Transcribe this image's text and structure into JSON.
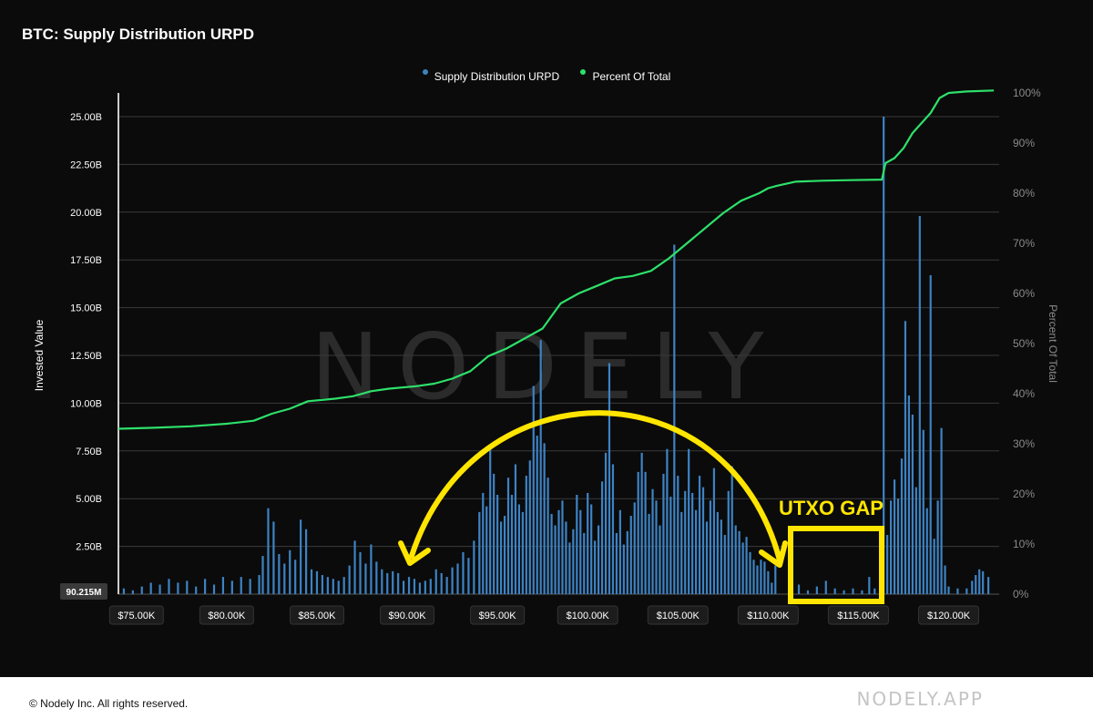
{
  "header": {
    "title": "BTC: Supply Distribution URPD"
  },
  "footer": {
    "copyright": "© Nodely Inc. All rights reserved.",
    "brand": "NODELY.APP"
  },
  "watermark": "NODELY",
  "colors": {
    "background": "#0b0b0b",
    "bars": "#3d83c4",
    "line": "#2ee06a",
    "annotation": "#ffe500",
    "grid": "#3a3a3a"
  },
  "annotation": {
    "gap_label": "UTXO GAP"
  },
  "chart_data": {
    "type": "bar",
    "title": "BTC: Supply Distribution URPD",
    "ylabel": "Invested Value",
    "y2label": "Percent Of Total",
    "legend": [
      "Supply Distribution URPD",
      "Percent Of Total"
    ],
    "legend_position": "top-center",
    "grid": true,
    "xlim": [
      74000,
      122800
    ],
    "ylim": [
      0,
      25000000000
    ],
    "y2lim": [
      0,
      100
    ],
    "x_ticks": [
      "$75.00K",
      "$80.00K",
      "$85.00K",
      "$90.00K",
      "$95.00K",
      "$100.00K",
      "$105.00K",
      "$110.00K",
      "$115.00K",
      "$120.00K"
    ],
    "x_tick_values": [
      75000,
      80000,
      85000,
      90000,
      95000,
      100000,
      105000,
      110000,
      115000,
      120000
    ],
    "y_ticks": [
      "25.00B",
      "22.50B",
      "20.00B",
      "17.50B",
      "15.00B",
      "12.50B",
      "10.00B",
      "7.50B",
      "5.00B",
      "2.50B"
    ],
    "y_tick_values": [
      25,
      22.5,
      20,
      17.5,
      15,
      12.5,
      10,
      7.5,
      5,
      2.5
    ],
    "y_min_label": "90.215M",
    "y2_ticks": [
      "100%",
      "90%",
      "80%",
      "70%",
      "60%",
      "50%",
      "40%",
      "30%",
      "20%",
      "10%",
      "0%"
    ],
    "y2_tick_values": [
      100,
      90,
      80,
      70,
      60,
      50,
      40,
      30,
      20,
      10,
      0
    ],
    "series": [
      {
        "name": "Supply Distribution URPD",
        "type": "bar",
        "unit": "B",
        "points": [
          [
            74300,
            0.3
          ],
          [
            74800,
            0.2
          ],
          [
            75300,
            0.4
          ],
          [
            75800,
            0.6
          ],
          [
            76300,
            0.5
          ],
          [
            76800,
            0.8
          ],
          [
            77300,
            0.6
          ],
          [
            77800,
            0.7
          ],
          [
            78300,
            0.4
          ],
          [
            78800,
            0.8
          ],
          [
            79300,
            0.5
          ],
          [
            79800,
            0.9
          ],
          [
            80300,
            0.7
          ],
          [
            80800,
            0.9
          ],
          [
            81300,
            0.8
          ],
          [
            81800,
            1.0
          ],
          [
            82000,
            2.0
          ],
          [
            82300,
            4.5
          ],
          [
            82600,
            3.8
          ],
          [
            82900,
            2.1
          ],
          [
            83200,
            1.6
          ],
          [
            83500,
            2.3
          ],
          [
            83800,
            1.8
          ],
          [
            84100,
            3.9
          ],
          [
            84400,
            3.4
          ],
          [
            84700,
            1.3
          ],
          [
            85000,
            1.2
          ],
          [
            85300,
            1.0
          ],
          [
            85600,
            0.9
          ],
          [
            85900,
            0.8
          ],
          [
            86200,
            0.7
          ],
          [
            86500,
            0.9
          ],
          [
            86800,
            1.5
          ],
          [
            87100,
            2.8
          ],
          [
            87400,
            2.2
          ],
          [
            87700,
            1.6
          ],
          [
            88000,
            2.6
          ],
          [
            88300,
            1.7
          ],
          [
            88600,
            1.3
          ],
          [
            88900,
            1.1
          ],
          [
            89200,
            1.2
          ],
          [
            89500,
            1.1
          ],
          [
            89800,
            0.7
          ],
          [
            90100,
            0.9
          ],
          [
            90400,
            0.8
          ],
          [
            90700,
            0.6
          ],
          [
            91000,
            0.7
          ],
          [
            91300,
            0.8
          ],
          [
            91600,
            1.3
          ],
          [
            91900,
            1.1
          ],
          [
            92200,
            0.9
          ],
          [
            92500,
            1.4
          ],
          [
            92800,
            1.6
          ],
          [
            93100,
            2.2
          ],
          [
            93400,
            1.9
          ],
          [
            93700,
            2.8
          ],
          [
            94000,
            4.3
          ],
          [
            94200,
            5.3
          ],
          [
            94400,
            4.6
          ],
          [
            94600,
            7.7
          ],
          [
            94800,
            6.3
          ],
          [
            95000,
            5.2
          ],
          [
            95200,
            3.8
          ],
          [
            95400,
            4.1
          ],
          [
            95600,
            6.1
          ],
          [
            95800,
            5.2
          ],
          [
            96000,
            6.8
          ],
          [
            96200,
            4.7
          ],
          [
            96400,
            4.3
          ],
          [
            96600,
            6.2
          ],
          [
            96800,
            7.0
          ],
          [
            97000,
            10.9
          ],
          [
            97200,
            8.3
          ],
          [
            97400,
            13.3
          ],
          [
            97600,
            7.9
          ],
          [
            97800,
            6.1
          ],
          [
            98000,
            4.2
          ],
          [
            98200,
            3.6
          ],
          [
            98400,
            4.4
          ],
          [
            98600,
            4.9
          ],
          [
            98800,
            3.8
          ],
          [
            99000,
            2.7
          ],
          [
            99200,
            3.4
          ],
          [
            99400,
            5.2
          ],
          [
            99600,
            4.4
          ],
          [
            99800,
            3.2
          ],
          [
            100000,
            5.3
          ],
          [
            100200,
            4.7
          ],
          [
            100400,
            2.8
          ],
          [
            100600,
            3.6
          ],
          [
            100800,
            5.9
          ],
          [
            101000,
            7.4
          ],
          [
            101200,
            12.1
          ],
          [
            101400,
            6.8
          ],
          [
            101600,
            3.2
          ],
          [
            101800,
            4.4
          ],
          [
            102000,
            2.6
          ],
          [
            102200,
            3.3
          ],
          [
            102400,
            4.1
          ],
          [
            102600,
            4.8
          ],
          [
            102800,
            6.4
          ],
          [
            103000,
            7.4
          ],
          [
            103200,
            6.4
          ],
          [
            103400,
            4.2
          ],
          [
            103600,
            5.5
          ],
          [
            103800,
            4.9
          ],
          [
            104000,
            3.6
          ],
          [
            104200,
            6.3
          ],
          [
            104400,
            7.6
          ],
          [
            104600,
            5.1
          ],
          [
            104800,
            18.3
          ],
          [
            105000,
            6.2
          ],
          [
            105200,
            4.3
          ],
          [
            105400,
            5.4
          ],
          [
            105600,
            7.6
          ],
          [
            105800,
            5.3
          ],
          [
            106000,
            4.4
          ],
          [
            106200,
            6.2
          ],
          [
            106400,
            5.6
          ],
          [
            106600,
            3.8
          ],
          [
            106800,
            4.9
          ],
          [
            107000,
            6.6
          ],
          [
            107200,
            4.3
          ],
          [
            107400,
            3.9
          ],
          [
            107600,
            3.1
          ],
          [
            107800,
            5.4
          ],
          [
            108000,
            6.7
          ],
          [
            108200,
            3.6
          ],
          [
            108400,
            3.3
          ],
          [
            108600,
            2.7
          ],
          [
            108800,
            3.0
          ],
          [
            109000,
            2.2
          ],
          [
            109200,
            1.8
          ],
          [
            109400,
            1.5
          ],
          [
            109600,
            1.8
          ],
          [
            109800,
            1.7
          ],
          [
            110000,
            1.2
          ],
          [
            110200,
            0.6
          ],
          [
            110400,
            1.5
          ],
          [
            111200,
            0.2
          ],
          [
            111700,
            0.5
          ],
          [
            112200,
            0.2
          ],
          [
            112700,
            0.4
          ],
          [
            113200,
            0.7
          ],
          [
            113700,
            0.3
          ],
          [
            114200,
            0.2
          ],
          [
            114700,
            0.3
          ],
          [
            115200,
            0.2
          ],
          [
            115600,
            0.9
          ],
          [
            115900,
            0.3
          ],
          [
            116200,
            1.6
          ],
          [
            116400,
            25.0
          ],
          [
            116600,
            3.1
          ],
          [
            116800,
            4.9
          ],
          [
            117000,
            6.0
          ],
          [
            117200,
            5.0
          ],
          [
            117400,
            7.1
          ],
          [
            117600,
            14.3
          ],
          [
            117800,
            10.4
          ],
          [
            118000,
            9.4
          ],
          [
            118200,
            5.6
          ],
          [
            118400,
            19.8
          ],
          [
            118600,
            8.6
          ],
          [
            118800,
            4.5
          ],
          [
            119000,
            16.7
          ],
          [
            119200,
            2.9
          ],
          [
            119400,
            4.9
          ],
          [
            119600,
            8.7
          ],
          [
            119800,
            1.5
          ],
          [
            120000,
            0.4
          ],
          [
            120500,
            0.3
          ],
          [
            121000,
            0.3
          ],
          [
            121300,
            0.7
          ],
          [
            121500,
            1.0
          ],
          [
            121700,
            1.3
          ],
          [
            121900,
            1.2
          ],
          [
            122200,
            0.9
          ]
        ]
      },
      {
        "name": "Percent Of Total",
        "type": "line",
        "unit": "%",
        "points": [
          [
            74000,
            33.0
          ],
          [
            76000,
            33.2
          ],
          [
            78000,
            33.5
          ],
          [
            80000,
            34.0
          ],
          [
            81500,
            34.6
          ],
          [
            82500,
            36.0
          ],
          [
            83500,
            37.0
          ],
          [
            84500,
            38.5
          ],
          [
            86000,
            39.0
          ],
          [
            87000,
            39.5
          ],
          [
            88000,
            40.5
          ],
          [
            89000,
            41.0
          ],
          [
            90500,
            41.5
          ],
          [
            91500,
            42.0
          ],
          [
            92500,
            43.0
          ],
          [
            93500,
            44.5
          ],
          [
            94500,
            47.5
          ],
          [
            95500,
            49.0
          ],
          [
            96500,
            51.0
          ],
          [
            97500,
            53.0
          ],
          [
            98500,
            58.0
          ],
          [
            99500,
            60.0
          ],
          [
            100500,
            61.5
          ],
          [
            101500,
            63.0
          ],
          [
            102500,
            63.5
          ],
          [
            103500,
            64.5
          ],
          [
            104500,
            67.0
          ],
          [
            105500,
            70.0
          ],
          [
            106500,
            73.0
          ],
          [
            107500,
            76.0
          ],
          [
            108500,
            78.5
          ],
          [
            109500,
            80.0
          ],
          [
            110000,
            81.0
          ],
          [
            110500,
            81.5
          ],
          [
            111500,
            82.3
          ],
          [
            113000,
            82.5
          ],
          [
            114500,
            82.6
          ],
          [
            116300,
            82.7
          ],
          [
            116500,
            86.0
          ],
          [
            117000,
            87.0
          ],
          [
            117500,
            89.0
          ],
          [
            118000,
            92.0
          ],
          [
            118500,
            94.0
          ],
          [
            119000,
            96.0
          ],
          [
            119500,
            99.0
          ],
          [
            120000,
            100.0
          ],
          [
            121000,
            100.3
          ],
          [
            122500,
            100.5
          ]
        ]
      }
    ]
  }
}
